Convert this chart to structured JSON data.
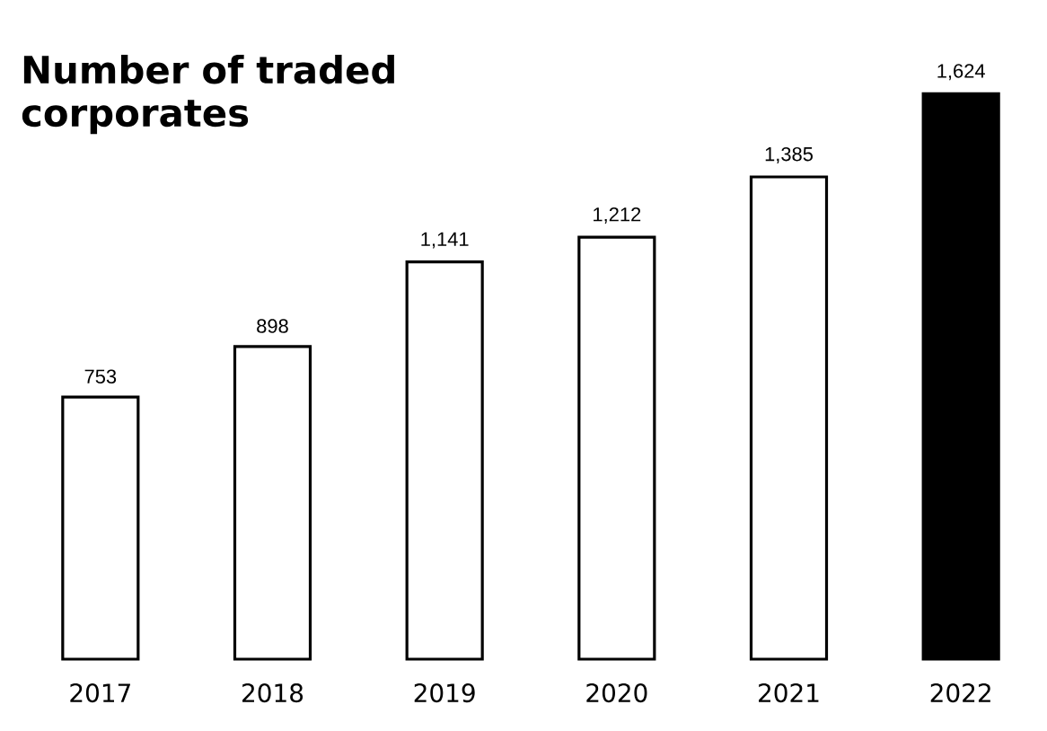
{
  "chart_data": {
    "type": "bar",
    "title": "Number of traded corporates",
    "categories": [
      "2017",
      "2018",
      "2019",
      "2020",
      "2021",
      "2022"
    ],
    "values": [
      753,
      898,
      1141,
      1212,
      1385,
      1624
    ],
    "value_labels": [
      "753",
      "898",
      "1,141",
      "1,212",
      "1,385",
      "1,624"
    ],
    "colors": [
      "#ffffff",
      "#ffffff",
      "#ffffff",
      "#ffffff",
      "#ffffff",
      "#000000"
    ]
  }
}
